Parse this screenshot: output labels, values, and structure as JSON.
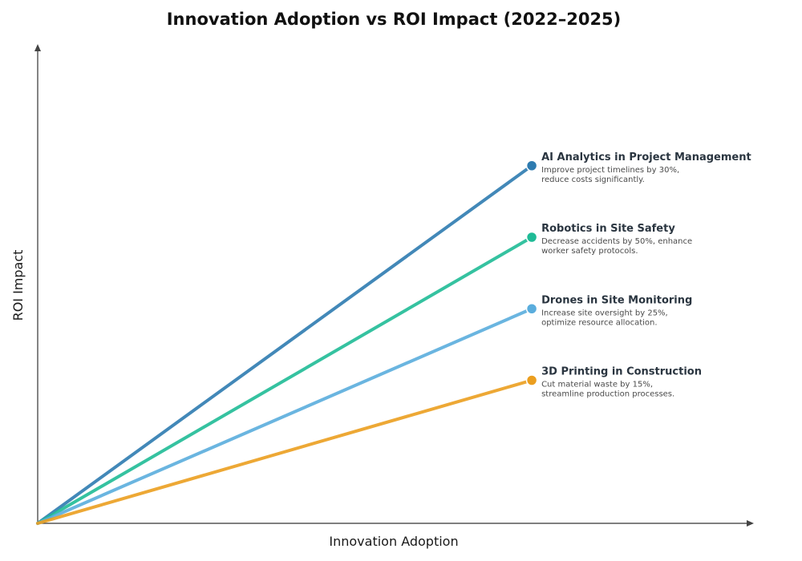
{
  "chart_data": {
    "type": "line",
    "title": "Innovation Adoption vs ROI Impact (2022–2025)",
    "xlabel": "Innovation Adoption",
    "ylabel": "ROI Impact",
    "xlim": [
      0,
      1
    ],
    "ylim": [
      0,
      1
    ],
    "grid": false,
    "series": [
      {
        "name": "AI Analytics in Project Management",
        "desc_line1": "Improve project timelines by 30%,",
        "desc_line2": "reduce costs significantly.",
        "color": "#2e7bb0",
        "x": [
          0,
          0.68
        ],
        "y": [
          0,
          0.75
        ]
      },
      {
        "name": "Robotics in Site Safety",
        "desc_line1": "Decrease accidents by 50%, enhance",
        "desc_line2": "worker safety protocols.",
        "color": "#1fbb96",
        "x": [
          0,
          0.68
        ],
        "y": [
          0,
          0.6
        ]
      },
      {
        "name": "Drones in Site Monitoring",
        "desc_line1": "Increase site oversight by 25%,",
        "desc_line2": "optimize resource allocation.",
        "color": "#5aaddd",
        "x": [
          0,
          0.68
        ],
        "y": [
          0,
          0.45
        ]
      },
      {
        "name": "3D Printing in Construction",
        "desc_line1": "Cut material waste by 15%,",
        "desc_line2": "streamline production processes.",
        "color": "#eb9e1f",
        "x": [
          0,
          0.68
        ],
        "y": [
          0,
          0.3
        ]
      }
    ]
  }
}
